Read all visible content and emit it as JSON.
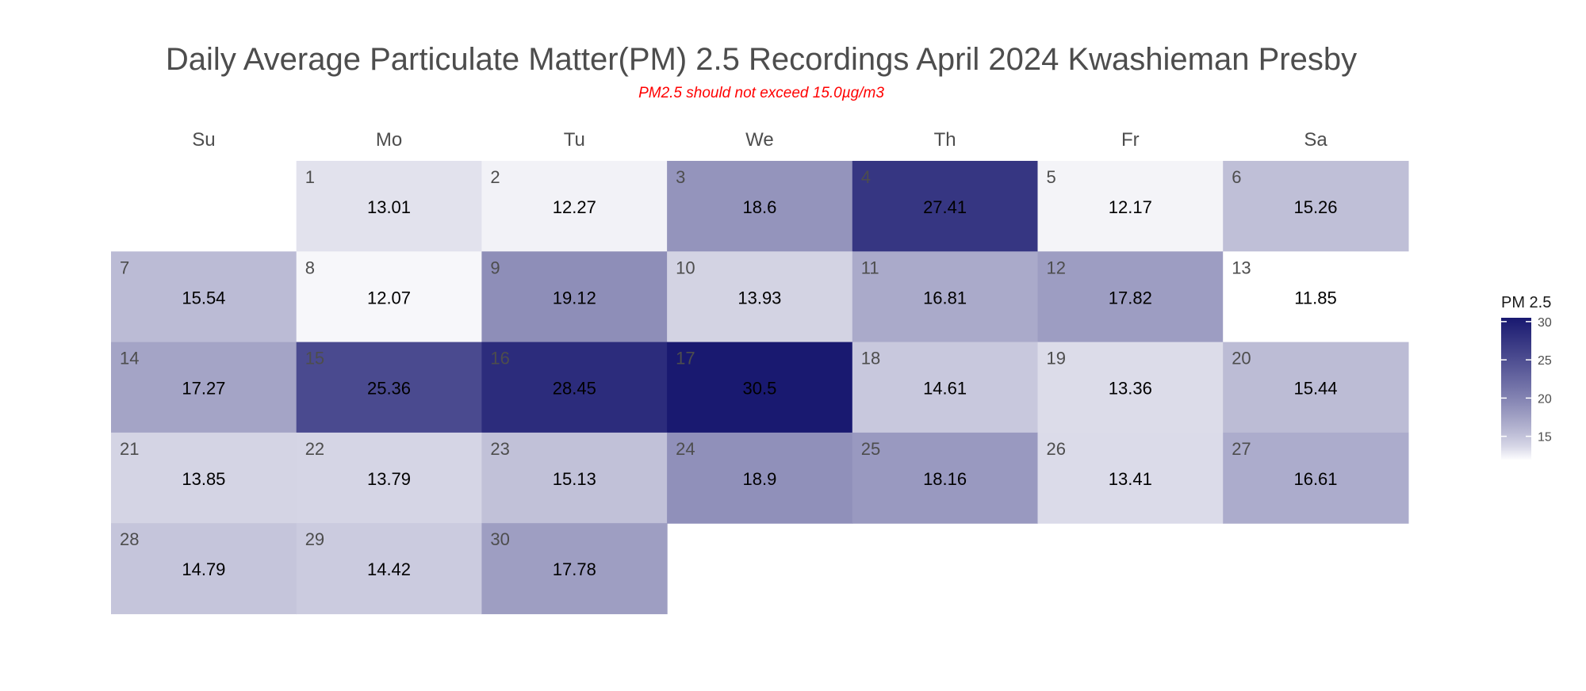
{
  "chart_data": {
    "type": "heatmap",
    "title": "Daily Average Particulate Matter(PM) 2.5 Recordings April 2024 Kwashieman Presby",
    "subtitle": "PM2.5 should not exceed 15.0µg/m3",
    "weekdays": [
      "Su",
      "Mo",
      "Tu",
      "We",
      "Th",
      "Fr",
      "Sa"
    ],
    "first_weekday_index": 1,
    "days": [
      1,
      2,
      3,
      4,
      5,
      6,
      7,
      8,
      9,
      10,
      11,
      12,
      13,
      14,
      15,
      16,
      17,
      18,
      19,
      20,
      21,
      22,
      23,
      24,
      25,
      26,
      27,
      28,
      29,
      30
    ],
    "values": [
      13.01,
      12.27,
      18.6,
      27.41,
      12.17,
      15.26,
      15.54,
      12.07,
      19.12,
      13.93,
      16.81,
      17.82,
      11.85,
      17.27,
      25.36,
      28.45,
      30.5,
      14.61,
      13.36,
      15.44,
      13.85,
      13.79,
      15.13,
      18.9,
      18.16,
      13.41,
      16.61,
      14.79,
      14.42,
      17.78
    ],
    "legend": {
      "title": "PM 2.5",
      "ticks": [
        15,
        20,
        25,
        30
      ],
      "range": [
        11.85,
        30.5
      ],
      "low_color": "#ffffff",
      "high_color": "#191970"
    }
  }
}
